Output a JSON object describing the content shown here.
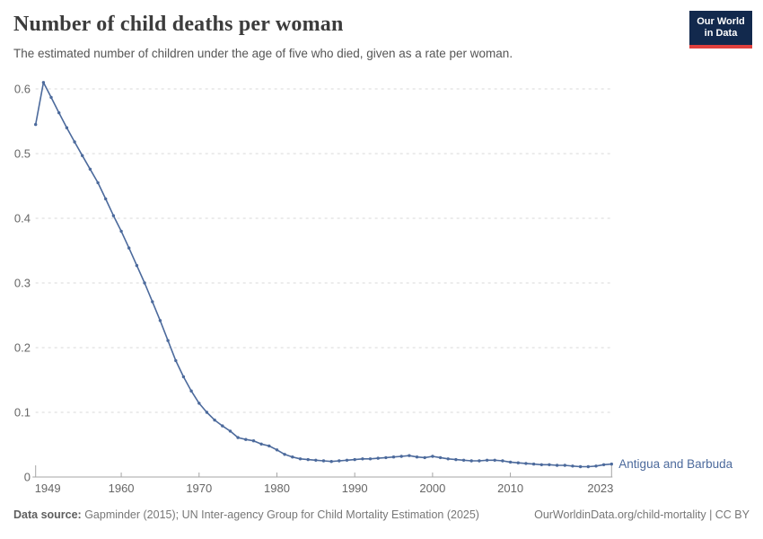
{
  "header": {
    "title": "Number of child deaths per woman",
    "subtitle": "The estimated number of children under the age of five who died, given as a rate per woman.",
    "logo": {
      "line1": "Our World",
      "line2": "in Data"
    }
  },
  "colors": {
    "series_blue": "#4c6a9c",
    "grid": "#dadada",
    "axis": "#a5a5a5",
    "tick_text": "#666666",
    "logo_bg": "#12294d",
    "logo_accent": "#e0403d"
  },
  "chart_data": {
    "type": "line",
    "title": "Number of child deaths per woman",
    "xlabel": "",
    "ylabel": "",
    "xlim": [
      1949,
      2023
    ],
    "ylim": [
      0,
      0.62
    ],
    "grid": "horizontal-dashed",
    "legend_position": "end-of-line-label",
    "x_ticks": [
      1949,
      1960,
      1970,
      1980,
      1990,
      2000,
      2010,
      2023
    ],
    "x_tick_labels": [
      "1949",
      "1960",
      "1970",
      "1980",
      "1990",
      "2000",
      "2010",
      "2023"
    ],
    "y_ticks": [
      0,
      0.1,
      0.2,
      0.3,
      0.4,
      0.5,
      0.6
    ],
    "y_tick_labels": [
      "0",
      "0.1",
      "0.2",
      "0.3",
      "0.4",
      "0.5",
      "0.6"
    ],
    "series": [
      {
        "name": "Antigua and Barbuda",
        "color": "#4c6a9c",
        "x": [
          1949,
          1950,
          1951,
          1952,
          1953,
          1954,
          1955,
          1956,
          1957,
          1958,
          1959,
          1960,
          1961,
          1962,
          1963,
          1964,
          1965,
          1966,
          1967,
          1968,
          1969,
          1970,
          1971,
          1972,
          1973,
          1974,
          1975,
          1976,
          1977,
          1978,
          1979,
          1980,
          1981,
          1982,
          1983,
          1984,
          1985,
          1986,
          1987,
          1988,
          1989,
          1990,
          1991,
          1992,
          1993,
          1994,
          1995,
          1996,
          1997,
          1998,
          1999,
          2000,
          2001,
          2002,
          2003,
          2004,
          2005,
          2006,
          2007,
          2008,
          2009,
          2010,
          2011,
          2012,
          2013,
          2014,
          2015,
          2016,
          2017,
          2018,
          2019,
          2020,
          2021,
          2022,
          2023
        ],
        "values": [
          0.545,
          0.61,
          0.587,
          0.563,
          0.54,
          0.518,
          0.497,
          0.476,
          0.455,
          0.43,
          0.404,
          0.38,
          0.354,
          0.327,
          0.3,
          0.271,
          0.242,
          0.211,
          0.18,
          0.155,
          0.133,
          0.114,
          0.1,
          0.088,
          0.079,
          0.071,
          0.061,
          0.058,
          0.056,
          0.051,
          0.048,
          0.042,
          0.035,
          0.031,
          0.028,
          0.027,
          0.026,
          0.025,
          0.024,
          0.025,
          0.026,
          0.027,
          0.028,
          0.028,
          0.029,
          0.03,
          0.031,
          0.032,
          0.033,
          0.031,
          0.03,
          0.032,
          0.03,
          0.028,
          0.027,
          0.026,
          0.025,
          0.025,
          0.026,
          0.026,
          0.025,
          0.023,
          0.022,
          0.021,
          0.02,
          0.019,
          0.019,
          0.018,
          0.018,
          0.017,
          0.016,
          0.016,
          0.017,
          0.019,
          0.02
        ]
      }
    ]
  },
  "footer": {
    "source_label": "Data source:",
    "source_text": " Gapminder (2015); UN Inter-agency Group for Child Mortality Estimation (2025)",
    "credit": "OurWorldinData.org/child-mortality | CC BY"
  }
}
